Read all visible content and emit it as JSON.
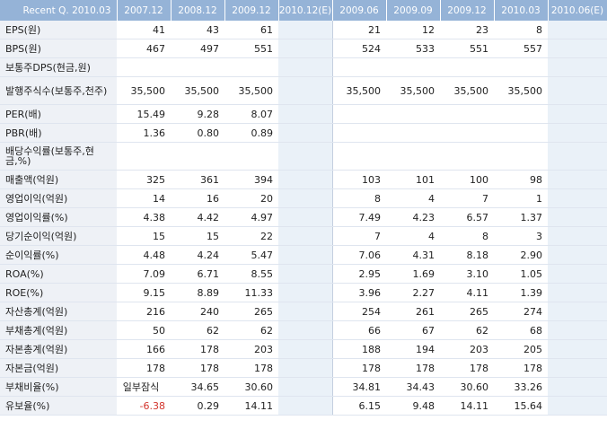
{
  "header": {
    "label": "Recent Q. 2010.03",
    "cols": [
      "2007.12",
      "2008.12",
      "2009.12",
      "2010.12(E)",
      "2009.06",
      "2009.09",
      "2009.12",
      "2010.03",
      "2010.06(E)"
    ]
  },
  "rows": [
    {
      "label": "EPS(원)",
      "values": [
        "41",
        "43",
        "61",
        "",
        "21",
        "12",
        "23",
        "8",
        ""
      ]
    },
    {
      "label": "BPS(원)",
      "values": [
        "467",
        "497",
        "551",
        "",
        "524",
        "533",
        "551",
        "557",
        ""
      ]
    },
    {
      "label": "보통주DPS(현금,원)",
      "values": [
        "",
        "",
        "",
        "",
        "",
        "",
        "",
        "",
        ""
      ]
    },
    {
      "label": "발행주식수(보통주,천주)",
      "values": [
        "35,500",
        "35,500",
        "35,500",
        "",
        "35,500",
        "35,500",
        "35,500",
        "35,500",
        ""
      ]
    },
    {
      "label": "PER(배)",
      "values": [
        "15.49",
        "9.28",
        "8.07",
        "",
        "",
        "",
        "",
        "",
        ""
      ]
    },
    {
      "label": "PBR(배)",
      "values": [
        "1.36",
        "0.80",
        "0.89",
        "",
        "",
        "",
        "",
        "",
        ""
      ]
    },
    {
      "label": "배당수익률(보통주,현금,%)",
      "values": [
        "",
        "",
        "",
        "",
        "",
        "",
        "",
        "",
        ""
      ]
    },
    {
      "label": "매출액(억원)",
      "values": [
        "325",
        "361",
        "394",
        "",
        "103",
        "101",
        "100",
        "98",
        ""
      ]
    },
    {
      "label": "영업이익(억원)",
      "values": [
        "14",
        "16",
        "20",
        "",
        "8",
        "4",
        "7",
        "1",
        ""
      ]
    },
    {
      "label": "영업이익률(%)",
      "values": [
        "4.38",
        "4.42",
        "4.97",
        "",
        "7.49",
        "4.23",
        "6.57",
        "1.37",
        ""
      ]
    },
    {
      "label": "당기순이익(억원)",
      "values": [
        "15",
        "15",
        "22",
        "",
        "7",
        "4",
        "8",
        "3",
        ""
      ]
    },
    {
      "label": "순이익률(%)",
      "values": [
        "4.48",
        "4.24",
        "5.47",
        "",
        "7.06",
        "4.31",
        "8.18",
        "2.90",
        ""
      ]
    },
    {
      "label": "ROA(%)",
      "values": [
        "7.09",
        "6.71",
        "8.55",
        "",
        "2.95",
        "1.69",
        "3.10",
        "1.05",
        ""
      ]
    },
    {
      "label": "ROE(%)",
      "values": [
        "9.15",
        "8.89",
        "11.33",
        "",
        "3.96",
        "2.27",
        "4.11",
        "1.39",
        ""
      ]
    },
    {
      "label": "자산총계(억원)",
      "values": [
        "216",
        "240",
        "265",
        "",
        "254",
        "261",
        "265",
        "274",
        ""
      ]
    },
    {
      "label": "부채총계(억원)",
      "values": [
        "50",
        "62",
        "62",
        "",
        "66",
        "67",
        "62",
        "68",
        ""
      ]
    },
    {
      "label": "자본총계(억원)",
      "values": [
        "166",
        "178",
        "203",
        "",
        "188",
        "194",
        "203",
        "205",
        ""
      ]
    },
    {
      "label": "자본금(억원)",
      "values": [
        "178",
        "178",
        "178",
        "",
        "178",
        "178",
        "178",
        "178",
        ""
      ]
    },
    {
      "label": "부채비율(%)",
      "values": [
        "일부잠식",
        "34.65",
        "30.60",
        "",
        "34.81",
        "34.43",
        "30.60",
        "33.26",
        ""
      ]
    },
    {
      "label": "유보율(%)",
      "values": [
        "-6.38",
        "0.29",
        "14.11",
        "",
        "6.15",
        "9.48",
        "14.11",
        "15.64",
        ""
      ]
    }
  ],
  "colors": {
    "header_bg": "#95b3d7",
    "label_bg": "#eef1f6",
    "estimate_bg": "#eaf1f8",
    "negative": "#d3352d"
  }
}
